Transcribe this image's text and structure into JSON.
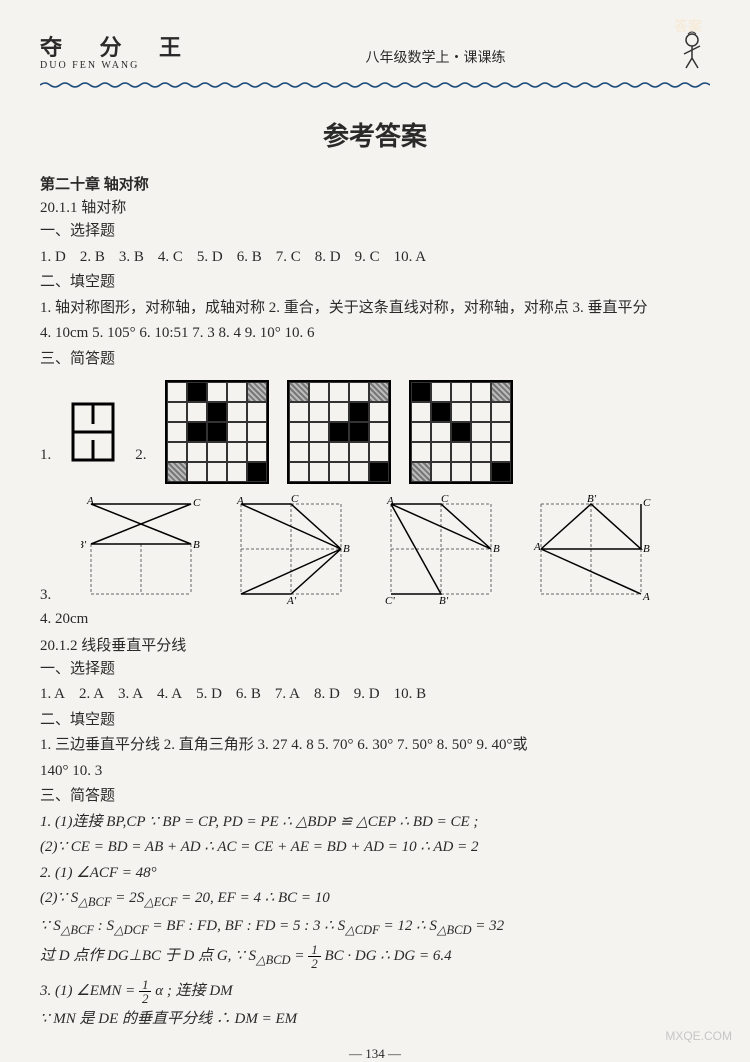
{
  "header": {
    "cn_title": "夺 分 王",
    "pinyin": "DUO FEN WANG",
    "subject": "八年级数学上・课课练"
  },
  "main_title": "参考答案",
  "chapter20": {
    "title": "第二十章  轴对称",
    "s1": {
      "title": "20.1.1 轴对称",
      "choice_label": "一、选择题",
      "choices": [
        "1. D",
        "2. B",
        "3. B",
        "4. C",
        "5. D",
        "6. B",
        "7. C",
        "8. D",
        "9. C",
        "10. A"
      ],
      "fill_label": "二、填空题",
      "fill_line1": "1. 轴对称图形，对称轴，成轴对称    2. 重合，关于这条直线对称，对称轴，对称点    3. 垂直平分",
      "fill_line2": "4. 10cm    5. 105°    6. 10:51    7. 3    8. 4    9. 10°    10. 6",
      "short_label": "三、简答题",
      "q4": "4. 20cm"
    },
    "s2": {
      "title": "20.1.2  线段垂直平分线",
      "choice_label": "一、选择题",
      "choices": [
        "1. A",
        "2. A",
        "3. A",
        "4. A",
        "5. D",
        "6. B",
        "7. A",
        "8. D",
        "9. D",
        "10. B"
      ],
      "fill_label": "二、填空题",
      "fill_line1": "1. 三边垂直平分线    2. 直角三角形    3. 27    4. 8    5. 70°    6. 30°    7. 50°    8. 50°    9. 40°或",
      "fill_line2": "140°    10. 3",
      "short_label": "三、简答题",
      "a1_1": "1. (1)连接 BP,CP    ∵ BP = CP, PD = PE    ∴ △BDP ≌ △CEP    ∴ BD = CE ;",
      "a1_2": "    (2)∵ CE = BD = AB + AD    ∴ AC = CE + AE = BD + AD = 10    ∴ AD = 2",
      "a2_1": "2. (1) ∠ACF = 48°",
      "a2_2a": "    (2)∵ S",
      "a2_2b": "△BCF",
      "a2_2c": " = 2S",
      "a2_2d": "△ECF",
      "a2_2e": " = 20, EF = 4    ∴ BC = 10",
      "a2_3a": "    ∵ S",
      "a2_3b": "△BCF",
      "a2_3c": " : S",
      "a2_3d": "△DCF",
      "a2_3e": " = BF : FD, BF : FD = 5 : 3    ∴ S",
      "a2_3f": "△CDF",
      "a2_3g": " = 12    ∴ S",
      "a2_3h": "△BCD",
      "a2_3i": " = 32",
      "a2_4a": "    过 D 点作 DG⊥BC 于 D 点 G, ∵ S",
      "a2_4b": "△BCD",
      "a2_4c": " = ",
      "a2_4d": "BC · DG    ∴ DG = 6.4",
      "a3_1a": "3. (1) ∠EMN = ",
      "a3_1b": "α ; 连接 DM",
      "a3_2": "    ∵ MN 是 DE 的垂直平分线    ∴ DM = EM"
    }
  },
  "fractions": {
    "half_num": "1",
    "half_den": "2"
  },
  "grids": {
    "g1": {
      "black": [
        [
          0,
          1
        ],
        [
          1,
          2
        ],
        [
          2,
          1
        ],
        [
          2,
          2
        ],
        [
          4,
          4
        ]
      ],
      "hatch": [
        [
          0,
          4
        ],
        [
          4,
          0
        ]
      ]
    },
    "g2": {
      "black": [
        [
          2,
          2
        ],
        [
          2,
          3
        ],
        [
          1,
          3
        ],
        [
          4,
          4
        ]
      ],
      "hatch": [
        [
          0,
          0
        ],
        [
          0,
          4
        ]
      ]
    },
    "g3": {
      "black": [
        [
          0,
          0
        ],
        [
          1,
          1
        ],
        [
          2,
          2
        ],
        [
          4,
          4
        ]
      ],
      "hatch": [
        [
          0,
          4
        ],
        [
          4,
          0
        ]
      ]
    }
  },
  "geom_labels": {
    "fig1": {
      "A": "A",
      "B": "B",
      "C": "C",
      "Bp": "B'"
    },
    "fig2": {
      "A": "A",
      "B": "B",
      "C": "C",
      "Ap": "A'"
    },
    "fig3": {
      "A": "A",
      "B": "B",
      "C": "C",
      "Bp": "B'",
      "Cp": "C'"
    },
    "fig4": {
      "A": "A",
      "B": "B",
      "C": "C",
      "Ap": "A'",
      "Bp": "B'"
    }
  },
  "page_number": "— 134 —",
  "watermarks": {
    "br": "MXQE.COM",
    "tr": "答案"
  },
  "colors": {
    "text": "#2a2a2a",
    "bg": "#f5f3ef",
    "wave": "#1a4a7a"
  }
}
